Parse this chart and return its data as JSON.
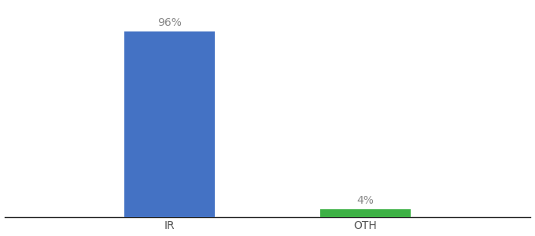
{
  "categories": [
    "IR",
    "OTH"
  ],
  "values": [
    96,
    4
  ],
  "bar_colors": [
    "#4472c4",
    "#3cb044"
  ],
  "label_texts": [
    "96%",
    "4%"
  ],
  "background_color": "#ffffff",
  "bar_width": 0.18,
  "x_positions": [
    0.33,
    0.72
  ],
  "ylim": [
    0,
    110
  ],
  "xlim": [
    0.0,
    1.05
  ],
  "label_fontsize": 10,
  "tick_fontsize": 10,
  "title_fontsize": 11
}
